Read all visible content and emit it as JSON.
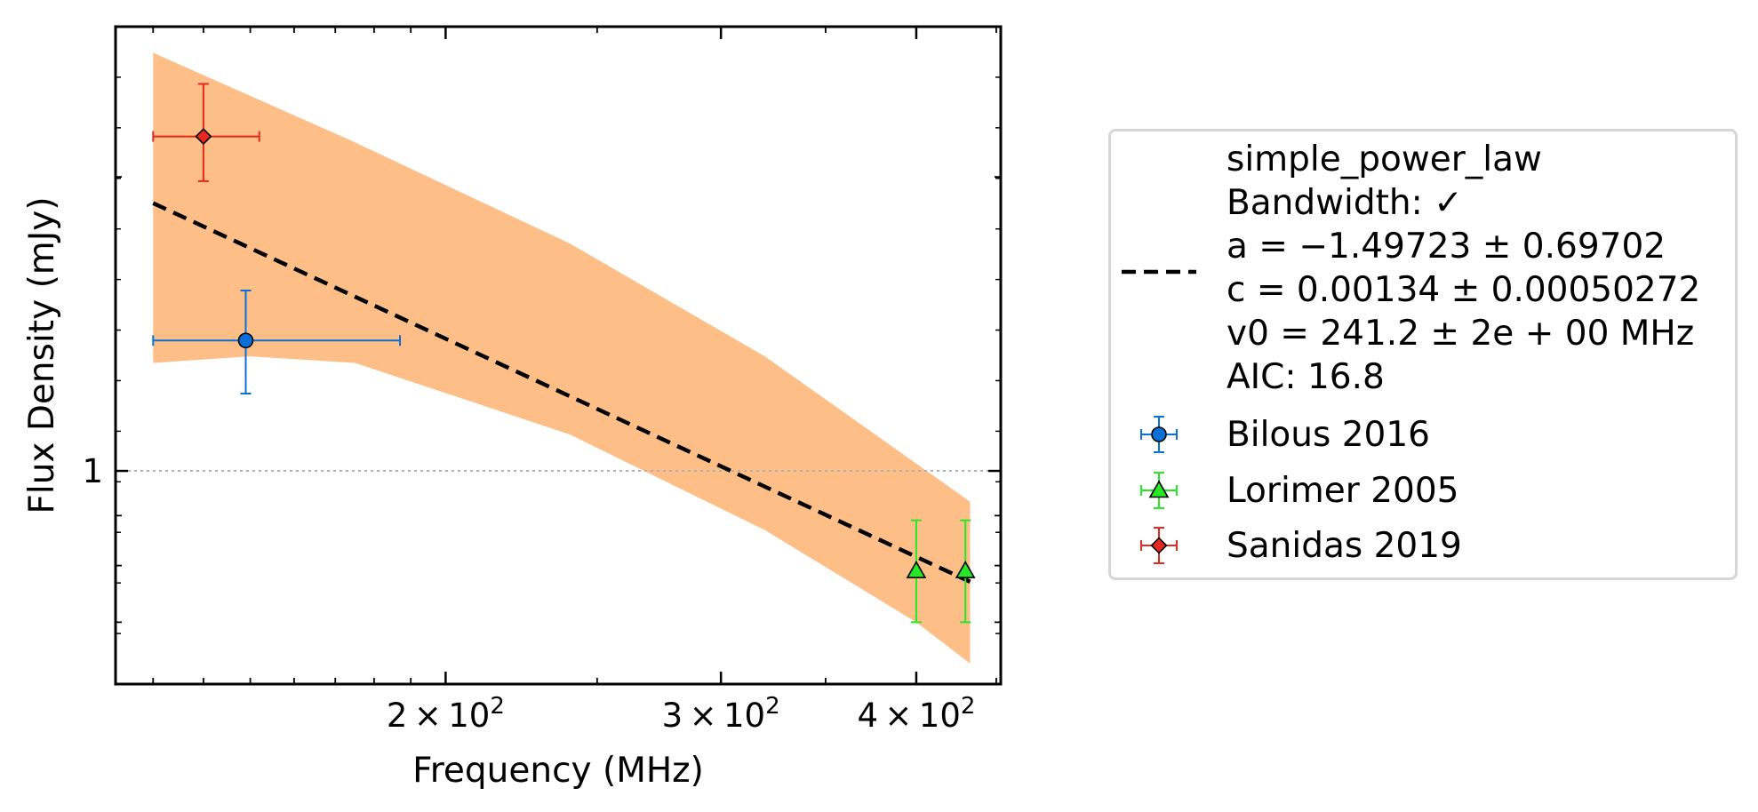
{
  "chart_data": {
    "type": "scatter",
    "title": "",
    "xlabel": "Frequency (MHz)",
    "ylabel": "Flux Density (mJy)",
    "x_scale": "log",
    "y_scale": "log",
    "xlim": [
      123,
      453
    ],
    "ylim": [
      0.605,
      2.85
    ],
    "x_ticks": [
      {
        "value": 200,
        "base": "2",
        "exp": "2"
      },
      {
        "value": 300,
        "base": "3",
        "exp": "2"
      },
      {
        "value": 400,
        "base": "4",
        "exp": "2"
      }
    ],
    "y_ticks": [
      {
        "value": 1,
        "label": "1"
      }
    ],
    "y_reference_line": 1,
    "fit": {
      "model": "simple_power_law",
      "bandwidth_label": "Bandwidth: ✓",
      "a_label": "a = −1.49723 ± 0.69702",
      "c_label": "c = 0.00134 ± 0.00050272",
      "v0_label": "v0 = 241.2 ± 2e + 00 MHz",
      "aic_label": "AIC: 16.8",
      "line_color": "#000000",
      "band_color": "#fdbf87",
      "line_x": [
        130,
        433
      ],
      "line_y": [
        1.88,
        0.77
      ],
      "band_upper": [
        [
          130,
          2.68
        ],
        [
          175,
          2.17
        ],
        [
          240,
          1.71
        ],
        [
          320,
          1.31
        ],
        [
          433,
          0.93
        ]
      ],
      "band_lower": [
        [
          130,
          1.29
        ],
        [
          150,
          1.31
        ],
        [
          175,
          1.29
        ],
        [
          240,
          1.09
        ],
        [
          320,
          0.87
        ],
        [
          400,
          0.7
        ],
        [
          433,
          0.635
        ]
      ]
    },
    "series": [
      {
        "name": "Bilous 2016",
        "marker": "circle",
        "color": "#0b6fd8",
        "points": [
          {
            "x": 149,
            "y": 1.36,
            "xerr": [
              19,
              38
            ],
            "yerr": [
              0.16,
              0.17
            ]
          }
        ]
      },
      {
        "name": "Lorimer 2005",
        "marker": "triangle",
        "color": "#27e827",
        "points": [
          {
            "x": 400,
            "y": 0.79,
            "xerr": [
              0,
              0
            ],
            "yerr": [
              0.09,
              0.1
            ]
          },
          {
            "x": 430,
            "y": 0.79,
            "xerr": [
              0,
              0
            ],
            "yerr": [
              0.09,
              0.1
            ]
          }
        ]
      },
      {
        "name": "Sanidas 2019",
        "marker": "diamond",
        "color": "#e8281e",
        "points": [
          {
            "x": 140,
            "y": 2.2,
            "xerr": [
              10,
              12
            ],
            "yerr": [
              0.22,
              0.29
            ]
          }
        ]
      }
    ],
    "legend_position": "outside-right",
    "grid": false
  }
}
